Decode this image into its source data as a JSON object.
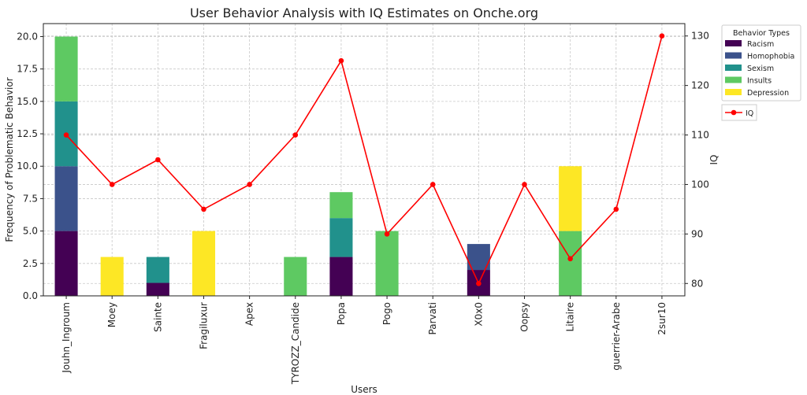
{
  "chart_data": {
    "type": "bar",
    "stacked": true,
    "title": "User Behavior Analysis with IQ Estimates on Onche.org",
    "xlabel": "Users",
    "ylabel": "Frequency of Problematic Behavior",
    "y2label": "IQ",
    "categories": [
      "Jouhn_Ingroum",
      "Moey",
      "Sainte",
      "Fragiluxur",
      "Apex",
      "TYROZZ_Candide",
      "Popa",
      "Pogo",
      "Parvati",
      "X0x0",
      "Oopsy",
      "Litaire",
      "guerrier-Arabe",
      "2sur10"
    ],
    "ylim": [
      0,
      21
    ],
    "yticks": [
      0.0,
      2.5,
      5.0,
      7.5,
      10.0,
      12.5,
      15.0,
      17.5,
      20.0
    ],
    "y2lim": [
      77.5,
      132.5
    ],
    "y2ticks": [
      80,
      90,
      100,
      110,
      120,
      130
    ],
    "grid": true,
    "legend": {
      "title": "Behavior Types",
      "placement": "top-right outside"
    },
    "series": [
      {
        "name": "Racism",
        "color": "#440154",
        "values": [
          5,
          0,
          1,
          0,
          0,
          0,
          3,
          0,
          0,
          2,
          0,
          0,
          0,
          0
        ]
      },
      {
        "name": "Homophobia",
        "color": "#3b528b",
        "values": [
          5,
          0,
          0,
          0,
          0,
          0,
          0,
          0,
          0,
          2,
          0,
          0,
          0,
          0
        ]
      },
      {
        "name": "Sexism",
        "color": "#21918c",
        "values": [
          5,
          0,
          2,
          0,
          0,
          0,
          3,
          0,
          0,
          0,
          0,
          0,
          0,
          0
        ]
      },
      {
        "name": "Insults",
        "color": "#5ec962",
        "values": [
          5,
          0,
          0,
          0,
          0,
          3,
          2,
          5,
          0,
          0,
          0,
          5,
          0,
          0
        ]
      },
      {
        "name": "Depression",
        "color": "#fde725",
        "values": [
          0,
          3,
          0,
          5,
          0,
          0,
          0,
          0,
          0,
          0,
          0,
          5,
          0,
          0
        ]
      }
    ],
    "line": {
      "name": "IQ",
      "color": "#ff0000",
      "axis": "right",
      "values": [
        110,
        100,
        105,
        95,
        100,
        110,
        125,
        90,
        100,
        80,
        100,
        85,
        95,
        130
      ]
    }
  }
}
